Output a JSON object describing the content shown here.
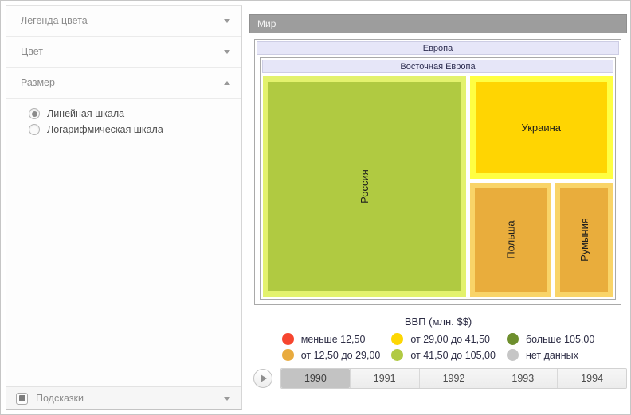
{
  "window": {
    "title": "Мир"
  },
  "sidebar": {
    "sections": [
      {
        "label": "Легенда цвета",
        "state": "collapsed"
      },
      {
        "label": "Цвет",
        "state": "collapsed"
      },
      {
        "label": "Размер",
        "state": "expanded"
      }
    ],
    "size_scale_options": [
      {
        "label": "Линейная шкала",
        "selected": true
      },
      {
        "label": "Логарифмическая шкала",
        "selected": false
      }
    ],
    "tooltips_label": "Подсказки"
  },
  "treemap": {
    "root_label": "Мир",
    "region_label": "Европа",
    "subregion_label": "Восточная Европа",
    "tiles": [
      {
        "name": "Россия",
        "fill": "#b0ca41",
        "border": "#e3f26d"
      },
      {
        "name": "Украина",
        "fill": "#ffd502",
        "border": "#ffff42"
      },
      {
        "name": "Польша",
        "fill": "#e9ad3c",
        "border": "#f9d468"
      },
      {
        "name": "Румыния",
        "fill": "#e9ad3c",
        "border": "#f9d468"
      }
    ]
  },
  "legend": {
    "title": "ВВП (млн. $$)",
    "items": [
      {
        "label": "меньше 12,50",
        "color": "#f6452f"
      },
      {
        "label": "от 12,50 до 29,00",
        "color": "#e9ab3e"
      },
      {
        "label": "от 29,00 до 41,50",
        "color": "#fdd703"
      },
      {
        "label": "от 41,50 до 105,00",
        "color": "#b1ca44"
      },
      {
        "label": "больше 105,00",
        "color": "#6e8f2e"
      },
      {
        "label": "нет данных",
        "color": "#c6c6c6"
      }
    ]
  },
  "timeline": {
    "years": [
      "1990",
      "1991",
      "1992",
      "1993",
      "1994"
    ],
    "selected_year": "1990"
  },
  "chart_data": {
    "type": "treemap",
    "title": "ВВП (млн. $$)",
    "hierarchy": [
      "Мир",
      "Европа",
      "Восточная Европа"
    ],
    "year": "1990",
    "nodes": [
      {
        "name": "Россия",
        "color_bin": "от 41,50 до 105,00",
        "area_share": 0.58
      },
      {
        "name": "Украина",
        "color_bin": "от 29,00 до 41,50",
        "area_share": 0.2
      },
      {
        "name": "Польша",
        "color_bin": "от 12,50 до 29,00",
        "area_share": 0.13
      },
      {
        "name": "Румыния",
        "color_bin": "от 12,50 до 29,00",
        "area_share": 0.09
      }
    ],
    "color_bins": [
      "меньше 12,50",
      "от 12,50 до 29,00",
      "от 29,00 до 41,50",
      "от 41,50 до 105,00",
      "больше 105,00",
      "нет данных"
    ]
  }
}
